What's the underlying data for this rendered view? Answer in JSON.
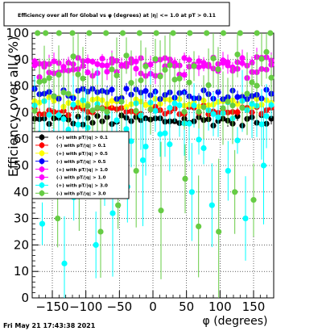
{
  "chart_data": {
    "type": "scatter",
    "title": "Efficiency over all for Global vs φ (degrees) at |η| <= 1.0 at pT > 0.11",
    "xlabel": "φ (degrees)",
    "ylabel": "Efficiency over all (%)",
    "xlim": [
      -180,
      180
    ],
    "ylim": [
      0,
      100
    ],
    "x_ticks": [
      -150,
      -100,
      -50,
      0,
      50,
      100,
      150
    ],
    "x_tick_labels": [
      "−150",
      "−100",
      "−50",
      "0",
      "50",
      "100",
      "150"
    ],
    "y_ticks": [
      0,
      10,
      20,
      30,
      40,
      50,
      60,
      70,
      80,
      90,
      100
    ],
    "grid": true,
    "legend_position": "left-middle",
    "series": [
      {
        "name": "(+) with pT/|q| > 0.1",
        "color": "#000000",
        "center": 67,
        "spread": 2,
        "err": 2,
        "outliers": []
      },
      {
        "name": "(-) with pT/|q| > 0.1",
        "color": "#ff0000",
        "center": 71,
        "spread": 2,
        "err": 2,
        "outliers": []
      },
      {
        "name": "(+) with pT/|q| > 0.5",
        "color": "#ffff00",
        "center": 74,
        "spread": 2,
        "err": 3,
        "outliers": []
      },
      {
        "name": "(-) with pT/|q| > 0.5",
        "color": "#0000ff",
        "center": 77,
        "spread": 2,
        "err": 3,
        "outliers": []
      },
      {
        "name": "(+) with pT/|q| > 1.0",
        "color": "#ff00ff",
        "center": 86,
        "spread": 3,
        "err": 3,
        "outliers": []
      },
      {
        "name": "(-) with pT/|q| > 1.0",
        "color": "#ff00ff",
        "center": 89,
        "spread": 2,
        "err": 3,
        "outliers": []
      },
      {
        "name": "(+) with pT/|q| > 3.0",
        "color": "#00ffff",
        "center": 65,
        "spread": 10,
        "err": 12,
        "outliers": [
          [
            -165,
            28
          ],
          [
            -148,
            55
          ],
          [
            -132,
            13
          ],
          [
            -118,
            38
          ],
          [
            -100,
            60
          ],
          [
            -85,
            20
          ],
          [
            -72,
            45
          ],
          [
            -60,
            32
          ],
          [
            -38,
            42
          ],
          [
            -15,
            52
          ],
          [
            25,
            58
          ],
          [
            58,
            40
          ],
          [
            88,
            35
          ],
          [
            112,
            48
          ],
          [
            138,
            30
          ],
          [
            165,
            50
          ]
        ]
      },
      {
        "name": "(-) with pT/|q| > 3.0",
        "color": "#66cc44",
        "center": 82,
        "spread": 12,
        "err": 14,
        "outliers": [
          [
            -172,
            100
          ],
          [
            -160,
            100
          ],
          [
            -140,
            100
          ],
          [
            -120,
            100
          ],
          [
            -95,
            100
          ],
          [
            -70,
            100
          ],
          [
            -45,
            100
          ],
          [
            -20,
            100
          ],
          [
            5,
            100
          ],
          [
            30,
            100
          ],
          [
            55,
            100
          ],
          [
            80,
            100
          ],
          [
            105,
            100
          ],
          [
            130,
            100
          ],
          [
            155,
            100
          ],
          [
            175,
            100
          ],
          [
            -142,
            30
          ],
          [
            -110,
            42
          ],
          [
            -78,
            25
          ],
          [
            -52,
            35
          ],
          [
            -25,
            48
          ],
          [
            12,
            33
          ],
          [
            48,
            45
          ],
          [
            68,
            27
          ],
          [
            98,
            25
          ],
          [
            122,
            40
          ],
          [
            150,
            37
          ]
        ]
      }
    ],
    "timestamp": "Fri May 21 17:43:38 2021"
  }
}
